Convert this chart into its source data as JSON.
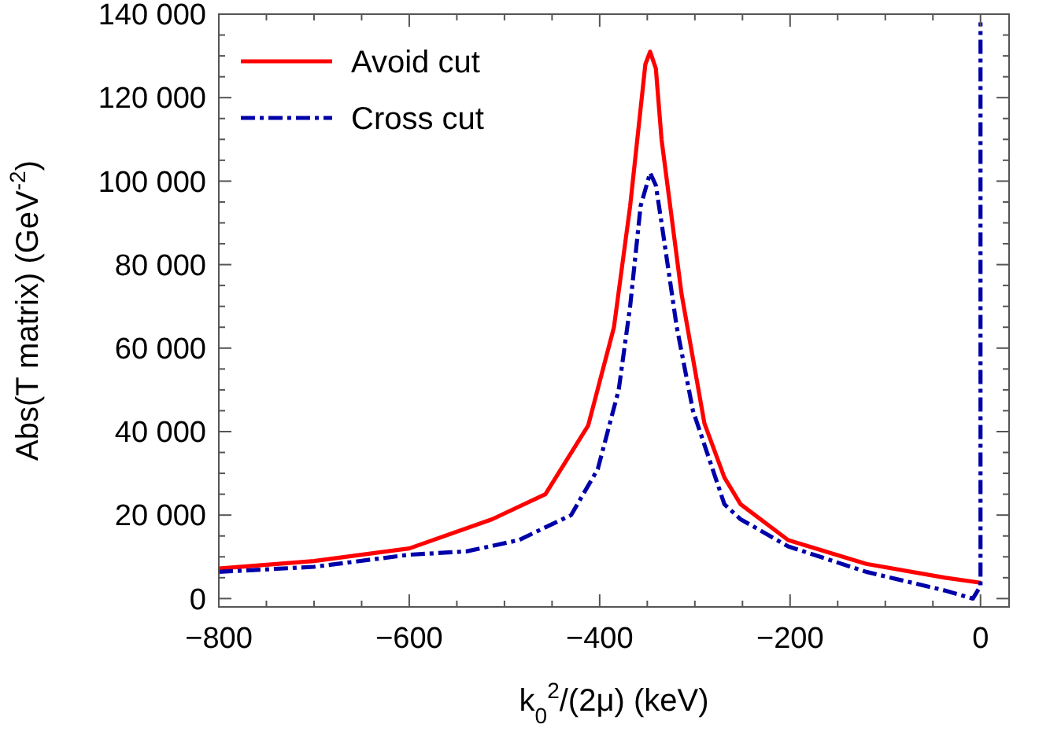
{
  "chart_data": {
    "type": "line",
    "xlabel": "k$_{0}$$^{2}$/(2μ) (keV)",
    "ylabel": "Abs(T matrix) (GeV$^{-2}$)",
    "xlim": [
      -800,
      30
    ],
    "ylim": [
      -2000,
      140000
    ],
    "xticks": [
      -800,
      {
        "value": -750,
        "label": null
      },
      {
        "value": -700,
        "label": null
      },
      {
        "value": -650,
        "label": null
      },
      -600,
      {
        "value": -550,
        "label": null
      },
      {
        "value": -500,
        "label": null
      },
      {
        "value": -450,
        "label": null
      },
      -400,
      {
        "value": -350,
        "label": null
      },
      {
        "value": -300,
        "label": null
      },
      {
        "value": -250,
        "label": null
      },
      -200,
      {
        "value": -150,
        "label": null
      },
      {
        "value": -100,
        "label": null
      },
      {
        "value": -50,
        "label": null
      },
      0
    ],
    "yticks": [
      0,
      {
        "value": 5000,
        "label": null
      },
      {
        "value": 10000,
        "label": null
      },
      {
        "value": 15000,
        "label": null
      },
      {
        "value": 20000,
        "label": "20 000"
      },
      {
        "value": 25000,
        "label": null
      },
      {
        "value": 30000,
        "label": null
      },
      {
        "value": 35000,
        "label": null
      },
      {
        "value": 40000,
        "label": "40 000"
      },
      {
        "value": 45000,
        "label": null
      },
      {
        "value": 50000,
        "label": null
      },
      {
        "value": 55000,
        "label": null
      },
      {
        "value": 60000,
        "label": "60 000"
      },
      {
        "value": 65000,
        "label": null
      },
      {
        "value": 70000,
        "label": null
      },
      {
        "value": 75000,
        "label": null
      },
      {
        "value": 80000,
        "label": "80 000"
      },
      {
        "value": 85000,
        "label": null
      },
      {
        "value": 90000,
        "label": null
      },
      {
        "value": 95000,
        "label": null
      },
      {
        "value": 100000,
        "label": "100 000"
      },
      {
        "value": 105000,
        "label": null
      },
      {
        "value": 110000,
        "label": null
      },
      {
        "value": 115000,
        "label": null
      },
      {
        "value": 120000,
        "label": "120 000"
      },
      {
        "value": 125000,
        "label": null
      },
      {
        "value": 130000,
        "label": null
      },
      {
        "value": 135000,
        "label": null
      },
      {
        "value": 140000,
        "label": "140 000"
      }
    ],
    "grid": false,
    "legend": "top left",
    "marker": "none",
    "series": [
      {
        "name": "Avoid cut",
        "color": "#ff0000",
        "line_style": "solid",
        "x": [
          -800,
          -700,
          -600,
          -513,
          -457,
          -412,
          -385,
          -368,
          -352,
          -347,
          -341,
          -335,
          -314,
          -290,
          -269,
          -252,
          -202,
          -120,
          -37,
          0
        ],
        "values": [
          7200,
          9000,
          12000,
          19000,
          25000,
          41500,
          65000,
          94000,
          128000,
          131000,
          127000,
          110000,
          73000,
          42000,
          29000,
          22600,
          14000,
          8300,
          5000,
          3800
        ]
      },
      {
        "name": "Cross cut",
        "color": "#0000aa",
        "line_style": "dashdot",
        "x": [
          -800,
          -700,
          -600,
          -540,
          -485,
          -430,
          -402,
          -380,
          -368,
          -357,
          -347,
          -341,
          -335,
          -319,
          -302,
          -269,
          -252,
          -202,
          -120,
          -37,
          -8,
          0,
          0
        ],
        "values": [
          6400,
          7600,
          10500,
          11300,
          14000,
          20000,
          31000,
          50000,
          70000,
          94000,
          102000,
          99000,
          90000,
          65000,
          45000,
          22600,
          19000,
          12500,
          6400,
          1900,
          0,
          3000,
          138000
        ]
      }
    ]
  }
}
